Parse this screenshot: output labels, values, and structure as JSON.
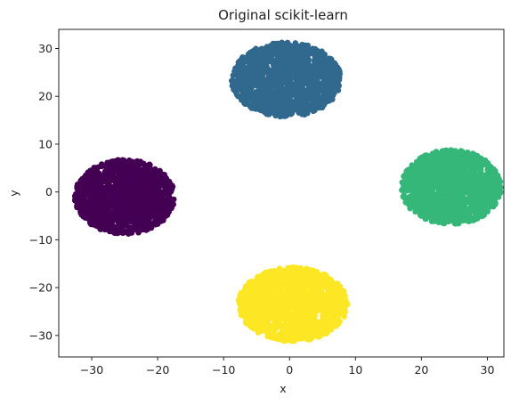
{
  "chart_data": {
    "type": "scatter",
    "title": "Original scikit-learn",
    "xlabel": "x",
    "ylabel": "y",
    "xlim": [
      -35,
      32.5
    ],
    "ylim": [
      -34.5,
      34
    ],
    "xticks": [
      -30,
      -20,
      -10,
      0,
      10,
      20,
      30
    ],
    "yticks": [
      -30,
      -20,
      -10,
      0,
      10,
      20,
      30
    ],
    "grid": false,
    "legend": "none",
    "series": [
      {
        "color": "#440154",
        "center": [
          -25,
          -1
        ],
        "spread": [
          7.6,
          7.8
        ]
      },
      {
        "color": "#31688e",
        "center": [
          -0.5,
          23.5
        ],
        "spread": [
          8.3,
          7.8
        ]
      },
      {
        "color": "#35b779",
        "center": [
          24.5,
          1
        ],
        "spread": [
          7.6,
          7.8
        ]
      },
      {
        "color": "#fde725",
        "center": [
          0.5,
          -23.5
        ],
        "spread": [
          8.3,
          7.8
        ]
      }
    ]
  }
}
